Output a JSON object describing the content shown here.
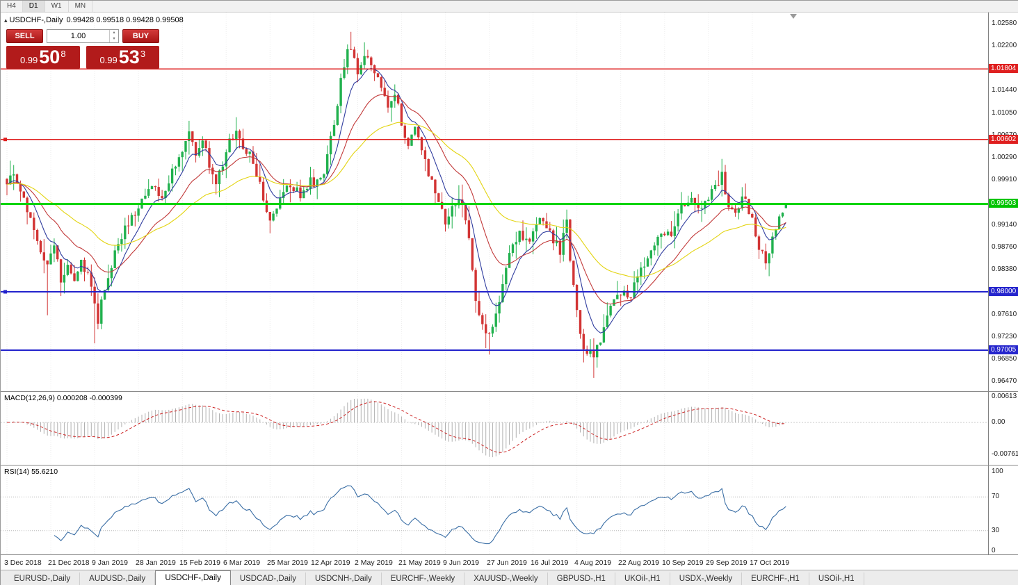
{
  "colors": {
    "bull": "#21b14e",
    "bear": "#d23434",
    "ma_fast": "#2f3c9e",
    "ma_mid": "#c23a3a",
    "ma_slow": "#e3d411",
    "macd_hist": "#b0b0b0",
    "macd_signal": "#cc2222",
    "rsi_line": "#3a6ea5"
  },
  "icons": {
    "collapse_icon": "▴",
    "spin_up_icon": "▴",
    "spin_down_icon": "▾"
  },
  "toolbar": {
    "timeframes": [
      "H4",
      "D1",
      "W1",
      "MN"
    ],
    "active": "D1"
  },
  "chart_header": {
    "symbol": "USDCHF-,Daily",
    "ohlc": "0.99428 0.99518 0.99428 0.99508"
  },
  "trade_panel": {
    "sell_label": "SELL",
    "buy_label": "BUY",
    "volume": "1.00",
    "bid_small": "0.99",
    "bid_big": "50",
    "bid_sup": "8",
    "ask_small": "0.99",
    "ask_big": "53",
    "ask_sup": "3"
  },
  "price_axis": {
    "ticks": [
      "1.02580",
      "1.02200",
      "1.01440",
      "1.01050",
      "1.00670",
      "1.00290",
      "0.99910",
      "0.99140",
      "0.98760",
      "0.98380",
      "0.97610",
      "0.97230",
      "0.96850",
      "0.96470"
    ],
    "badges": [
      {
        "label": "1.01804",
        "color": "#df1f1f"
      },
      {
        "label": "1.00602",
        "color": "#df1f1f"
      },
      {
        "label": "0.99503",
        "color": "#00c400"
      },
      {
        "label": "0.98000",
        "color": "#2525cd"
      },
      {
        "label": "0.97005",
        "color": "#2525cd"
      }
    ]
  },
  "macd_panel": {
    "label": "MACD(12,26,9) 0.000208 -0.000399",
    "axis": [
      "0.00613",
      "0.00",
      "-0.00761"
    ]
  },
  "rsi_panel": {
    "label": "RSI(14) 55.6210",
    "axis": [
      "100",
      "70",
      "30",
      "0"
    ],
    "levels": [
      70,
      30
    ]
  },
  "date_axis": {
    "labels": [
      "3 Dec 2018",
      "21 Dec 2018",
      "9 Jan 2019",
      "28 Jan 2019",
      "15 Feb 2019",
      "6 Mar 2019",
      "25 Mar 2019",
      "12 Apr 2019",
      "2 May 2019",
      "21 May 2019",
      "9 Jun 2019",
      "27 Jun 2019",
      "16 Jul 2019",
      "4 Aug 2019",
      "22 Aug 2019",
      "10 Sep 2019",
      "29 Sep 2019",
      "17 Oct 2019"
    ]
  },
  "tabs": {
    "items": [
      "EURUSD-,Daily",
      "AUDUSD-,Daily",
      "USDCHF-,Daily",
      "USDCAD-,Daily",
      "USDCNH-,Daily",
      "EURCHF-,Weekly",
      "XAUUSD-,Weekly",
      "GBPUSD-,H1",
      "UKOil-,H1",
      "USDX-,Weekly",
      "EURCHF-,H1",
      "USOil-,H1"
    ],
    "active_index": 2
  },
  "chart_data": {
    "type": "candlestick",
    "symbol": "USDCHF-",
    "timeframe": "Daily",
    "bars": 232,
    "label_step": 13,
    "price_range": {
      "top": 1.0258,
      "bottom": 0.9647
    },
    "levels": [
      {
        "value": 1.01804,
        "color": "#df1f1f",
        "width": 1.4,
        "handle": false
      },
      {
        "value": 1.00602,
        "color": "#df1f1f",
        "width": 1.4,
        "handle": true
      },
      {
        "value": 0.99503,
        "color": "#00d400",
        "width": 3,
        "handle": false
      },
      {
        "value": 0.98,
        "color": "#2222cc",
        "width": 2,
        "handle": true
      },
      {
        "value": 0.97005,
        "color": "#2222cc",
        "width": 2,
        "handle": false
      }
    ],
    "anchors": [
      [
        0,
        0.9985
      ],
      [
        2,
        0.9996
      ],
      [
        4,
        0.9975
      ],
      [
        6,
        0.9942
      ],
      [
        8,
        0.9908
      ],
      [
        10,
        0.9868
      ],
      [
        12,
        0.9846
      ],
      [
        14,
        0.9872
      ],
      [
        16,
        0.9822
      ],
      [
        18,
        0.9844
      ],
      [
        20,
        0.9812
      ],
      [
        22,
        0.9846
      ],
      [
        24,
        0.9826
      ],
      [
        26,
        0.9788
      ],
      [
        27,
        0.9752
      ],
      [
        28,
        0.979
      ],
      [
        30,
        0.9826
      ],
      [
        32,
        0.9862
      ],
      [
        34,
        0.9896
      ],
      [
        36,
        0.9922
      ],
      [
        38,
        0.9936
      ],
      [
        40,
        0.9952
      ],
      [
        43,
        0.9986
      ],
      [
        46,
        0.9952
      ],
      [
        49,
        1.0002
      ],
      [
        52,
        1.0046
      ],
      [
        54,
        1.007
      ],
      [
        56,
        1.004
      ],
      [
        58,
        1.0064
      ],
      [
        60,
        1.0012
      ],
      [
        62,
        0.9986
      ],
      [
        64,
        1.0022
      ],
      [
        66,
        1.0056
      ],
      [
        68,
        1.0074
      ],
      [
        70,
        1.0036
      ],
      [
        72,
        1.004
      ],
      [
        75,
        0.9982
      ],
      [
        78,
        0.992
      ],
      [
        81,
        0.9952
      ],
      [
        84,
        0.9986
      ],
      [
        87,
        0.9966
      ],
      [
        90,
        0.999
      ],
      [
        92,
        0.9984
      ],
      [
        94,
        1.0006
      ],
      [
        96,
        1.006
      ],
      [
        98,
        1.0126
      ],
      [
        100,
        1.0192
      ],
      [
        102,
        1.022
      ],
      [
        104,
        1.0176
      ],
      [
        106,
        1.0206
      ],
      [
        108,
        1.0186
      ],
      [
        110,
        1.016
      ],
      [
        113,
        1.0118
      ],
      [
        115,
        1.014
      ],
      [
        117,
        1.0086
      ],
      [
        119,
        1.005
      ],
      [
        121,
        1.0076
      ],
      [
        124,
        1.002
      ],
      [
        127,
        0.9964
      ],
      [
        130,
        0.992
      ],
      [
        133,
        0.9946
      ],
      [
        135,
        0.9958
      ],
      [
        137,
        0.99
      ],
      [
        139,
        0.9788
      ],
      [
        141,
        0.9746
      ],
      [
        143,
        0.9722
      ],
      [
        145,
        0.977
      ],
      [
        147,
        0.9812
      ],
      [
        149,
        0.986
      ],
      [
        152,
        0.9902
      ],
      [
        155,
        0.9886
      ],
      [
        158,
        0.9922
      ],
      [
        161,
        0.9896
      ],
      [
        164,
        0.9872
      ],
      [
        166,
        0.993
      ],
      [
        167,
        0.9858
      ],
      [
        169,
        0.976
      ],
      [
        171,
        0.9706
      ],
      [
        174,
        0.9686
      ],
      [
        176,
        0.9722
      ],
      [
        179,
        0.9772
      ],
      [
        182,
        0.9802
      ],
      [
        185,
        0.9792
      ],
      [
        188,
        0.9842
      ],
      [
        191,
        0.9872
      ],
      [
        194,
        0.9906
      ],
      [
        197,
        0.9892
      ],
      [
        200,
        0.9942
      ],
      [
        203,
        0.9962
      ],
      [
        206,
        0.9942
      ],
      [
        209,
        0.9976
      ],
      [
        212,
        0.9996
      ],
      [
        214,
        0.9946
      ],
      [
        216,
        0.9932
      ],
      [
        218,
        0.9962
      ],
      [
        220,
        0.994
      ],
      [
        223,
        0.988
      ],
      [
        225,
        0.9846
      ],
      [
        227,
        0.9896
      ],
      [
        229,
        0.993
      ],
      [
        231,
        0.99508
      ]
    ],
    "wick_events": [
      {
        "bar": 12,
        "low": 0.976
      },
      {
        "bar": 26,
        "low": 0.9712
      },
      {
        "bar": 54,
        "high": 1.0092
      },
      {
        "bar": 68,
        "high": 1.0096
      },
      {
        "bar": 102,
        "high": 1.0244
      },
      {
        "bar": 106,
        "high": 1.0226
      },
      {
        "bar": 117,
        "high": 1.0118
      },
      {
        "bar": 143,
        "low": 0.9693
      },
      {
        "bar": 174,
        "low": 0.9647
      },
      {
        "bar": 212,
        "high": 1.0027
      },
      {
        "bar": 225,
        "low": 0.9838
      }
    ],
    "last_candle": {
      "open": 0.99428,
      "high": 0.99518,
      "low": 0.99428,
      "close": 0.99508
    },
    "indicators": {
      "ma_periods": [
        8,
        20,
        45
      ],
      "macd": [
        12,
        26,
        9
      ],
      "rsi": 14
    }
  }
}
